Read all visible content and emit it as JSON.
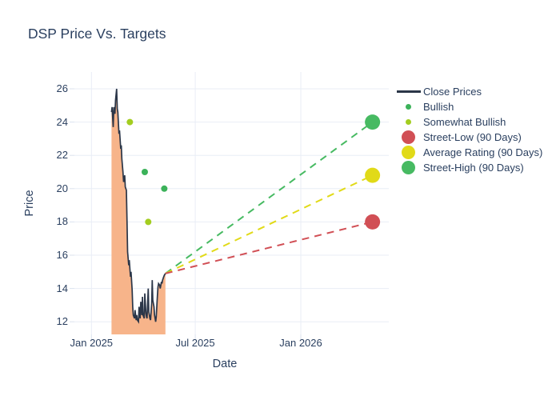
{
  "chart_data": {
    "type": "line",
    "title": "DSP Price Vs. Targets",
    "xlabel": "Date",
    "ylabel": "Price",
    "xtick_labels": [
      "Jan 2025",
      "Jul 2025",
      "Jan 2026"
    ],
    "xtick_dates": [
      "2025-01-01",
      "2025-07-01",
      "2026-01-01"
    ],
    "yticks": [
      12,
      14,
      16,
      18,
      20,
      22,
      24,
      26
    ],
    "ylim": [
      11.2,
      27.0
    ],
    "xlim_dates": [
      "2024-12-02",
      "2026-06-05"
    ],
    "grid": true,
    "legend_position": "right",
    "background": "#ffffff",
    "grid_color": "#e9edf6",
    "tick_color": "#dbe2ee",
    "text_color": "#2a3f5f",
    "series": {
      "close": {
        "name": "Close Prices",
        "type": "line",
        "color": "#2b3648",
        "fill": "tozero",
        "fill_color": "#f7b48a",
        "dates": [
          "2025-02-05",
          "2025-02-06",
          "2025-02-08",
          "2025-02-09",
          "2025-02-11",
          "2025-02-12",
          "2025-02-14",
          "2025-02-15",
          "2025-02-16",
          "2025-02-18",
          "2025-02-19",
          "2025-02-21",
          "2025-02-22",
          "2025-02-23",
          "2025-02-25",
          "2025-02-26",
          "2025-02-28",
          "2025-03-01",
          "2025-03-03",
          "2025-03-04",
          "2025-03-05",
          "2025-03-07",
          "2025-03-08",
          "2025-03-10",
          "2025-03-11",
          "2025-03-13",
          "2025-03-14",
          "2025-03-15",
          "2025-03-17",
          "2025-03-18",
          "2025-03-20",
          "2025-03-21",
          "2025-03-22",
          "2025-03-24",
          "2025-03-25",
          "2025-03-27",
          "2025-03-28",
          "2025-03-30",
          "2025-03-31",
          "2025-04-01",
          "2025-04-03",
          "2025-04-04",
          "2025-04-06",
          "2025-04-07",
          "2025-04-08",
          "2025-04-10",
          "2025-04-11",
          "2025-04-13",
          "2025-04-14",
          "2025-04-16",
          "2025-04-17",
          "2025-04-18",
          "2025-04-20",
          "2025-04-21",
          "2025-04-23",
          "2025-04-24",
          "2025-04-26",
          "2025-04-27",
          "2025-04-28",
          "2025-04-30",
          "2025-05-01",
          "2025-05-03",
          "2025-05-04",
          "2025-05-05",
          "2025-05-07",
          "2025-05-08",
          "2025-05-10"
        ],
        "values": [
          24.6,
          24.9,
          23.7,
          24.9,
          24.5,
          25.3,
          26.0,
          24.8,
          24.6,
          23.3,
          23.5,
          22.4,
          22.6,
          21.8,
          21.0,
          20.4,
          20.8,
          20.1,
          19.9,
          18.0,
          16.2,
          15.4,
          15.7,
          14.7,
          15.0,
          13.9,
          12.9,
          12.4,
          12.2,
          12.7,
          12.1,
          12.4,
          12.1,
          12.0,
          12.9,
          12.2,
          13.2,
          12.4,
          13.5,
          12.4,
          12.2,
          13.7,
          12.5,
          12.3,
          12.2,
          14.0,
          12.6,
          12.2,
          12.1,
          13.1,
          14.5,
          13.3,
          12.9,
          12.4,
          12.0,
          12.3,
          13.6,
          14.1,
          14.3,
          14.2,
          14.0,
          14.4,
          14.3,
          14.5,
          14.7,
          14.8,
          14.9
        ]
      },
      "bullish": {
        "name": "Bullish",
        "type": "scatter",
        "color": "#3cb25a",
        "points": [
          {
            "date": "2025-04-04",
            "value": 21.0
          },
          {
            "date": "2025-05-08",
            "value": 20.0
          }
        ]
      },
      "somewhat_bullish": {
        "name": "Somewhat Bullish",
        "type": "scatter",
        "color": "#a3cd20",
        "points": [
          {
            "date": "2025-03-09",
            "value": 24.0
          },
          {
            "date": "2025-04-10",
            "value": 18.0
          }
        ]
      },
      "projections": [
        {
          "id": "street-high",
          "name": "Street-High (90 Days)",
          "color": "#47ba62",
          "style": "dashed",
          "start": {
            "date": "2025-05-10",
            "value": 14.9
          },
          "end": {
            "date": "2026-05-06",
            "value": 24.0
          }
        },
        {
          "id": "average-rating",
          "name": "Average Rating (90 Days)",
          "color": "#e1da18",
          "style": "dashed",
          "start": {
            "date": "2025-05-10",
            "value": 14.9
          },
          "end": {
            "date": "2026-05-06",
            "value": 20.8
          }
        },
        {
          "id": "street-low",
          "name": "Street-Low (90 Days)",
          "color": "#d14f55",
          "style": "dashed",
          "start": {
            "date": "2025-05-10",
            "value": 14.9
          },
          "end": {
            "date": "2026-05-06",
            "value": 18.0
          }
        }
      ]
    }
  },
  "legend": {
    "items": [
      {
        "id": "close-prices",
        "label": "Close Prices",
        "swatch": "line",
        "color": "#2b3648"
      },
      {
        "id": "bullish",
        "label": "Bullish",
        "swatch": "dot",
        "color": "#3cb25a"
      },
      {
        "id": "somewhat-bullish",
        "label": "Somewhat Bullish",
        "swatch": "dot",
        "color": "#a3cd20"
      },
      {
        "id": "street-low",
        "label": "Street-Low (90 Days)",
        "swatch": "circle",
        "color": "#d14f55"
      },
      {
        "id": "average-rating",
        "label": "Average Rating (90 Days)",
        "swatch": "circle",
        "color": "#e1da18"
      },
      {
        "id": "street-high",
        "label": "Street-High (90 Days)",
        "swatch": "circle",
        "color": "#47ba62"
      }
    ]
  }
}
